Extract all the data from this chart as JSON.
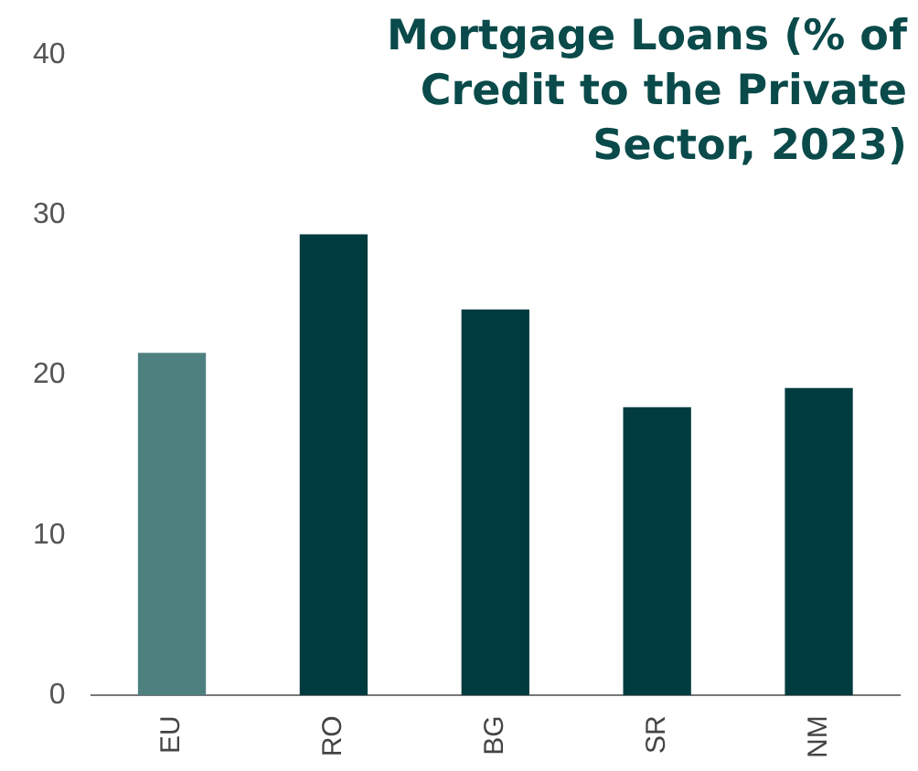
{
  "chart_data": {
    "type": "bar",
    "title": "Mortgage Loans (% of Credit to the Private Sector, 2023)",
    "categories": [
      "EU",
      "RO",
      "BG",
      "SR",
      "NM"
    ],
    "values": [
      21.4,
      28.8,
      24.1,
      18.0,
      19.2
    ],
    "colors": [
      "#4f8080",
      "#003b3f",
      "#003b3f",
      "#003b3f",
      "#003b3f"
    ],
    "ylim": [
      0,
      40
    ],
    "yticks": [
      0,
      10,
      20,
      30,
      40
    ],
    "grid": false,
    "legend": false
  }
}
